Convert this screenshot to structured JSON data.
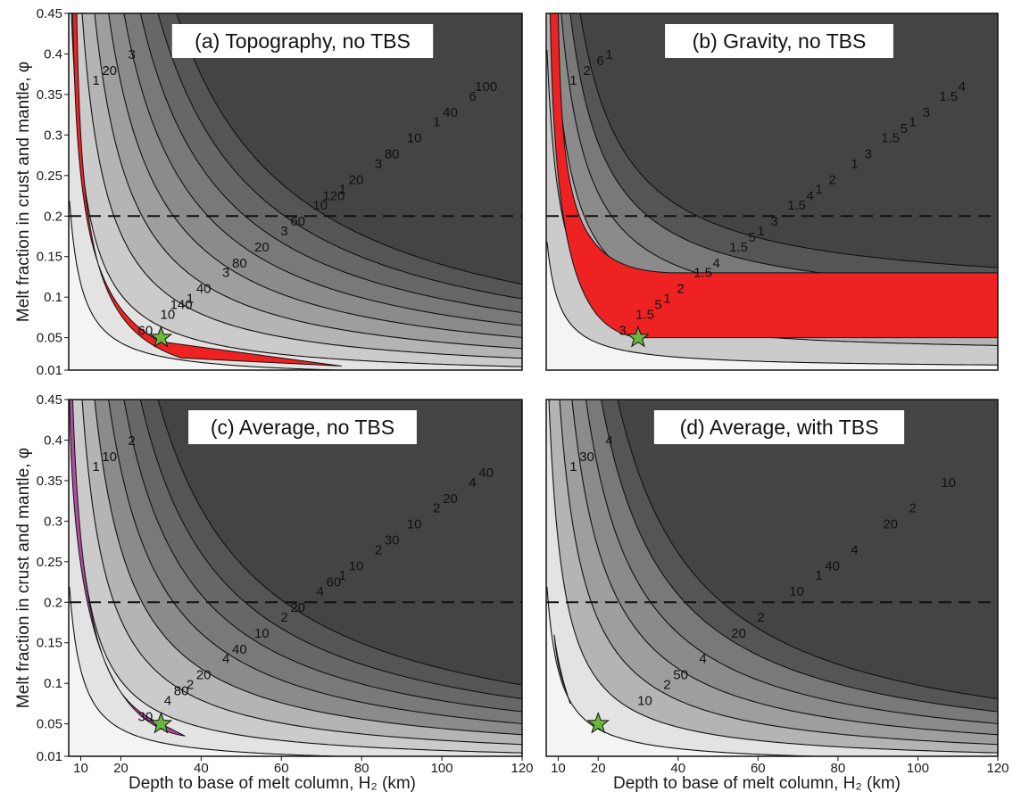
{
  "colors": {
    "levels": [
      "#f4f4f4",
      "#e3e3e3",
      "#cbcbcb",
      "#b4b4b4",
      "#9e9e9e",
      "#8b8b8b",
      "#797979",
      "#676767",
      "#555555",
      "#444444"
    ],
    "best_fit_red": "#ee2222",
    "best_fit_purple": "#b24ba6",
    "star": "#6ab63e"
  },
  "chart_data": [
    {
      "type": "contour",
      "panel_id": "a",
      "title": "(a) Topography, no TBS",
      "xlabel": "",
      "ylabel": "Melt fraction in crust and mantle, φ",
      "xlim": [
        7,
        120
      ],
      "ylim": [
        0.01,
        0.45
      ],
      "xticks": [],
      "yticks": [
        "0.01",
        "0.05",
        "0.1",
        "0.15",
        "0.2",
        "0.25",
        "0.3",
        "0.35",
        "0.4",
        "0.45"
      ],
      "reference_line_y": 0.2,
      "contour_levels": [
        3,
        10,
        20,
        40,
        60,
        80,
        100,
        120,
        140
      ],
      "contour_labels": [
        "1",
        "1",
        "1",
        "1",
        "3",
        "3",
        "3",
        "3",
        "6",
        "10",
        "10",
        "10",
        "20",
        "20",
        "20",
        "40",
        "40",
        "60",
        "60",
        "80",
        "80",
        "100",
        "120",
        "140"
      ],
      "best_fit_region": "red",
      "best_fit_point": {
        "x": 30,
        "y": 0.05
      }
    },
    {
      "type": "contour",
      "panel_id": "b",
      "title": "(b) Gravity, no TBS",
      "xlabel": "",
      "ylabel": "",
      "xlim": [
        7,
        120
      ],
      "ylim": [
        0.01,
        0.45
      ],
      "xticks": [],
      "yticks": [],
      "reference_line_y": 0.2,
      "contour_levels": [
        1.5,
        2,
        3,
        4,
        5,
        6
      ],
      "contour_labels": [
        "1",
        "1",
        "1",
        "1",
        "1",
        "1",
        "1",
        "1.5",
        "1.5",
        "1.5",
        "1.5",
        "1.5",
        "1.5",
        "2",
        "2",
        "2",
        "3",
        "3",
        "3",
        "3",
        "4",
        "4",
        "4",
        "5",
        "5",
        "5",
        "6"
      ],
      "best_fit_region": "red",
      "best_fit_point": {
        "x": 30,
        "y": 0.05
      }
    },
    {
      "type": "contour",
      "panel_id": "c",
      "title": "(c) Average, no TBS",
      "xlabel": "Depth to base of melt column, H₂ (km)",
      "ylabel": "Melt fraction in crust and mantle, φ",
      "xlim": [
        7,
        120
      ],
      "ylim": [
        0.01,
        0.45
      ],
      "xticks": [
        "10",
        "20",
        "40",
        "60",
        "80",
        "100",
        "120"
      ],
      "yticks": [
        "0.01",
        "0.05",
        "0.1",
        "0.15",
        "0.2",
        "0.25",
        "0.3",
        "0.35",
        "0.4",
        "0.45"
      ],
      "reference_line_y": 0.2,
      "contour_levels": [
        2,
        4,
        10,
        20,
        30,
        40,
        60,
        80
      ],
      "contour_labels": [
        "1",
        "1",
        "2",
        "2",
        "2",
        "2",
        "2",
        "4",
        "4",
        "4",
        "4",
        "10",
        "10",
        "10",
        "10",
        "20",
        "20",
        "20",
        "30",
        "30",
        "40",
        "40",
        "60",
        "80"
      ],
      "best_fit_region": "purple",
      "best_fit_point": {
        "x": 30,
        "y": 0.05
      }
    },
    {
      "type": "contour",
      "panel_id": "d",
      "title": "(d) Average, with TBS",
      "xlabel": "Depth to base of melt column, H₂ (km)",
      "ylabel": "",
      "xlim": [
        7,
        120
      ],
      "ylim": [
        0.01,
        0.45
      ],
      "xticks": [
        "10",
        "20",
        "40",
        "60",
        "80",
        "100",
        "120"
      ],
      "yticks": [],
      "reference_line_y": 0.2,
      "contour_levels": [
        2,
        4,
        10,
        20,
        30,
        40,
        50
      ],
      "contour_labels": [
        "1",
        "1",
        "2",
        "2",
        "2",
        "4",
        "4",
        "4",
        "10",
        "10",
        "10",
        "20",
        "20",
        "30",
        "40",
        "50"
      ],
      "best_fit_region": "purple",
      "best_fit_point": {
        "x": 20,
        "y": 0.05
      }
    }
  ]
}
